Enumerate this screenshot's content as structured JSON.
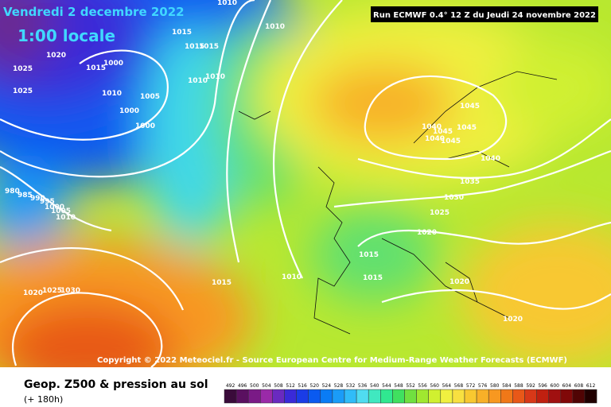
{
  "header": {
    "date": "Vendredi 2 decembre 2022",
    "time": "1:00 locale",
    "run": "Run ECMWF 0.4° 12 Z du Jeudi 24 novembre 2022"
  },
  "copyright": "Copyright © 2022 Meteociel.fr - Source European Centre for Medium-Range Weather Forecasts (ECMWF)",
  "footer": {
    "title": "Geop. Z500 & pression au sol",
    "lead": "(+ 180h)"
  },
  "legend": {
    "labels": [
      492,
      496,
      500,
      504,
      508,
      512,
      516,
      520,
      524,
      528,
      532,
      536,
      540,
      544,
      548,
      552,
      556,
      560,
      564,
      568,
      572,
      576,
      580,
      584,
      588,
      592,
      596,
      600,
      604,
      608,
      612
    ],
    "colors": [
      "#3a0b3a",
      "#5a1060",
      "#7a1a86",
      "#9a2aa8",
      "#6a2ac0",
      "#3a2ad8",
      "#1a3ce6",
      "#0a5af0",
      "#0a7cf5",
      "#1a9cf8",
      "#30bcf8",
      "#50dcf0",
      "#40e8c0",
      "#30e890",
      "#40e060",
      "#70e040",
      "#a0e830",
      "#d0f030",
      "#f0f040",
      "#f8e040",
      "#f8c830",
      "#f8b028",
      "#f89820",
      "#f07818",
      "#e85818",
      "#d83818",
      "#c02010",
      "#a01010",
      "#800808",
      "#500404",
      "#200000"
    ]
  },
  "isobars": [
    "1010",
    "1010",
    "1015",
    "1020",
    "1015",
    "1000",
    "1015",
    "1015",
    "1025",
    "1025",
    "1010",
    "1005",
    "1000",
    "1000",
    "1010",
    "1010",
    "1045",
    "1045",
    "1045",
    "1040",
    "1045",
    "1040",
    "1040",
    "1035",
    "1030",
    "1025",
    "1020",
    "1015",
    "1015",
    "1010",
    "1015",
    "1020",
    "1020",
    "1020",
    "1025",
    "1030",
    "980",
    "985",
    "990",
    "995",
    "1000",
    "1005",
    "1010"
  ]
}
